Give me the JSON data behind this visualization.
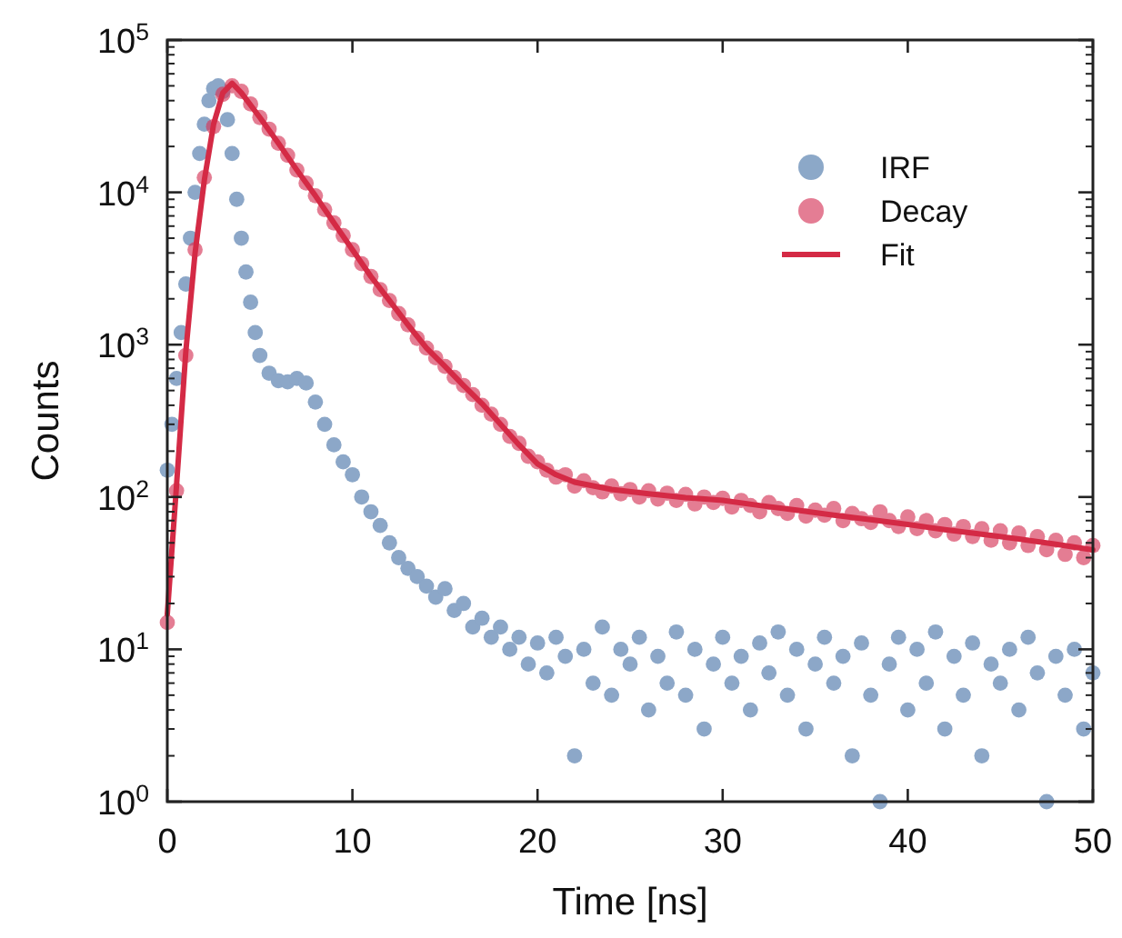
{
  "chart_data": {
    "type": "scatter",
    "xlabel": "Time [ns]",
    "ylabel": "Counts",
    "log": "y",
    "xlim": [
      0,
      50
    ],
    "xticks": [
      0,
      10,
      20,
      30,
      40,
      50
    ],
    "ylim": [
      1,
      100000
    ],
    "yticks": [
      {
        "value": 1,
        "label": "10$^{0}$"
      },
      {
        "value": 10,
        "label": "10$^{1}$"
      },
      {
        "value": 100,
        "label": "10$^{2}$"
      },
      {
        "value": 1000,
        "label": "10$^{3}$"
      },
      {
        "value": 10000,
        "label": "10$^{4}$"
      },
      {
        "value": 100000,
        "label": "10$^{5}$"
      }
    ],
    "grid": false,
    "legend": "top right",
    "marker": "circle",
    "series": [
      {
        "name": "IRF",
        "color": "#4f79ab",
        "x": [
          0,
          0.25,
          0.5,
          0.75,
          1,
          1.25,
          1.5,
          1.75,
          2,
          2.25,
          2.5,
          2.75,
          3,
          3.25,
          3.5,
          3.75,
          4,
          4.25,
          4.5,
          4.75,
          5,
          5.5,
          6,
          6.5,
          7,
          7.5,
          8,
          8.5,
          9,
          9.5,
          10,
          10.5,
          11,
          11.5,
          12,
          12.5,
          13,
          13.5,
          14,
          14.5,
          15,
          15.5,
          16,
          16.5,
          17,
          17.5,
          18,
          18.5,
          19,
          19.5,
          20,
          20.5,
          21,
          21.5,
          22,
          22.5,
          23,
          23.5,
          24,
          24.5,
          25,
          25.5,
          26,
          26.5,
          27,
          27.5,
          28,
          28.5,
          29,
          29.5,
          30,
          30.5,
          31,
          31.5,
          32,
          32.5,
          33,
          33.5,
          34,
          34.5,
          35,
          35.5,
          36,
          36.5,
          37,
          37.5,
          38,
          38.5,
          39,
          39.5,
          40,
          40.5,
          41,
          41.5,
          42,
          42.5,
          43,
          43.5,
          44,
          44.5,
          45,
          45.5,
          46,
          46.5,
          47,
          47.5,
          48,
          48.5,
          49,
          49.5,
          50
        ],
        "values": [
          150,
          300,
          600,
          1200,
          2500,
          5000,
          10000,
          18000,
          28000,
          40000,
          48000,
          50000,
          46000,
          30000,
          18000,
          9000,
          5000,
          3000,
          1900,
          1200,
          850,
          650,
          580,
          570,
          600,
          560,
          420,
          300,
          220,
          170,
          140,
          100,
          80,
          65,
          50,
          40,
          34,
          30,
          26,
          22,
          25,
          18,
          20,
          14,
          16,
          12,
          14,
          10,
          12,
          8,
          11,
          7,
          12,
          9,
          2,
          10,
          6,
          14,
          5,
          10,
          8,
          12,
          4,
          9,
          6,
          13,
          5,
          10,
          3,
          8,
          12,
          6,
          9,
          4,
          11,
          7,
          13,
          5,
          10,
          3,
          8,
          12,
          6,
          9,
          2,
          11,
          5,
          1,
          8,
          12,
          4,
          10,
          6,
          13,
          3,
          9,
          5,
          11,
          2,
          8,
          6,
          10,
          4,
          12,
          7,
          1,
          9,
          5,
          10,
          3,
          7
        ]
      },
      {
        "name": "Decay",
        "color": "#d6385a",
        "x": [
          0,
          0.5,
          1,
          1.5,
          2,
          2.5,
          3,
          3.5,
          4,
          4.5,
          5,
          5.5,
          6,
          6.5,
          7,
          7.5,
          8,
          8.5,
          9,
          9.5,
          10,
          10.5,
          11,
          11.5,
          12,
          12.5,
          13,
          13.5,
          14,
          14.5,
          15,
          15.5,
          16,
          16.5,
          17,
          17.5,
          18,
          18.5,
          19,
          19.5,
          20,
          20.5,
          21,
          21.5,
          22,
          22.5,
          23,
          23.5,
          24,
          24.5,
          25,
          25.5,
          26,
          26.5,
          27,
          27.5,
          28,
          28.5,
          29,
          29.5,
          30,
          30.5,
          31,
          31.5,
          32,
          32.5,
          33,
          33.5,
          34,
          34.5,
          35,
          35.5,
          36,
          36.5,
          37,
          37.5,
          38,
          38.5,
          39,
          39.5,
          40,
          40.5,
          41,
          41.5,
          42,
          42.5,
          43,
          43.5,
          44,
          44.5,
          45,
          45.5,
          46,
          46.5,
          47,
          47.5,
          48,
          48.5,
          49,
          49.5,
          50
        ],
        "values": [
          15,
          110,
          850,
          4200,
          12500,
          27000,
          44000,
          50000,
          46000,
          38000,
          31000,
          26000,
          21000,
          17500,
          14000,
          11500,
          9500,
          7700,
          6300,
          5200,
          4200,
          3400,
          2800,
          2300,
          1950,
          1600,
          1350,
          1100,
          950,
          820,
          720,
          610,
          540,
          470,
          400,
          350,
          300,
          250,
          225,
          185,
          170,
          150,
          135,
          140,
          118,
          128,
          115,
          108,
          118,
          105,
          112,
          100,
          110,
          97,
          106,
          95,
          104,
          90,
          100,
          92,
          98,
          86,
          95,
          88,
          80,
          92,
          84,
          78,
          88,
          75,
          82,
          76,
          84,
          70,
          78,
          72,
          68,
          80,
          70,
          64,
          74,
          62,
          70,
          60,
          66,
          57,
          64,
          55,
          62,
          52,
          60,
          50,
          58,
          48,
          55,
          45,
          52,
          42,
          50,
          40,
          48
        ]
      },
      {
        "name": "Fit",
        "type": "line",
        "color": "#d42a45",
        "line_style": "solid",
        "marker": "none",
        "x": [
          0,
          0.5,
          1,
          1.5,
          2,
          2.5,
          3,
          3.5,
          4,
          5,
          6,
          7,
          8,
          9,
          10,
          11,
          12,
          13,
          14,
          15,
          16,
          17,
          18,
          19,
          20,
          21,
          22,
          24,
          26,
          28,
          30,
          32,
          34,
          36,
          38,
          40,
          42,
          44,
          46,
          48,
          50
        ],
        "values": [
          17,
          120,
          900,
          4000,
          12000,
          28000,
          45000,
          52000,
          45000,
          31000,
          21000,
          14000,
          9500,
          6300,
          4200,
          2800,
          1950,
          1350,
          950,
          720,
          540,
          410,
          300,
          220,
          165,
          140,
          125,
          112,
          105,
          99,
          95,
          88,
          82,
          76,
          71,
          66,
          61,
          57,
          53,
          49,
          45
        ]
      }
    ]
  }
}
